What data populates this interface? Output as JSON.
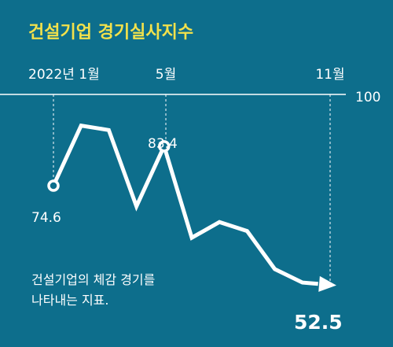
{
  "chart_data": {
    "type": "line",
    "title": "건설기업 경기실사지수",
    "x_labels": [
      "2022년 1월",
      "5월",
      "11월"
    ],
    "y_reference": "100",
    "x": [
      "2022-01",
      "2022-02",
      "2022-03",
      "2022-04",
      "2022-05",
      "2022-06",
      "2022-07",
      "2022-08",
      "2022-09",
      "2022-10",
      "2022-11"
    ],
    "values": [
      74.6,
      88.0,
      87.0,
      70.0,
      83.4,
      63.0,
      66.5,
      64.5,
      56.0,
      53.0,
      52.5
    ],
    "data_labels": [
      {
        "text": "74.6",
        "x": "2022-01",
        "value": 74.6
      },
      {
        "text": "83.4",
        "x": "2022-05",
        "value": 83.4
      },
      {
        "text": "52.5",
        "x": "2022-11",
        "value": 52.5
      }
    ],
    "description": "건설기업의 체감 경기를 나타내는 지표.",
    "colors": {
      "background": "#0d6e8c",
      "title": "#f2e14b",
      "line": "#ffffff"
    }
  }
}
